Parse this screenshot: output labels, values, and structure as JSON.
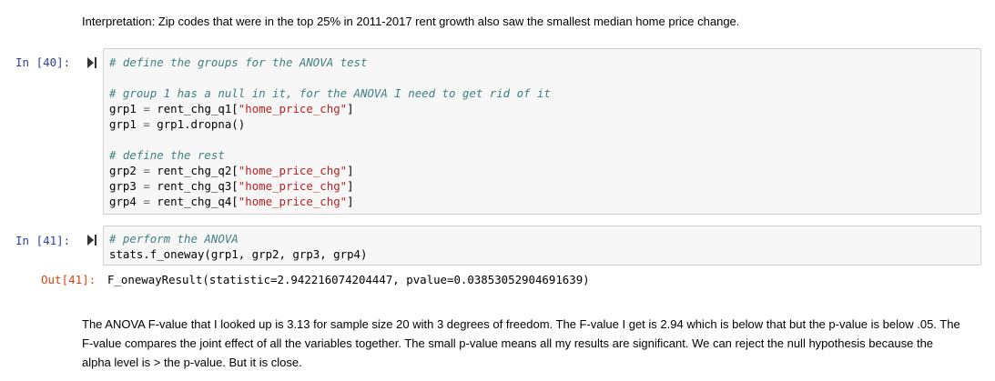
{
  "markdown_top": "Interpretation: Zip codes that were in the top 25% in 2011-2017 rent growth also saw the smallest median home price change.",
  "cell40": {
    "prompt": "In [40]:",
    "comment1": "# define the groups for the ANOVA test",
    "comment2": "# group 1 has a null in it, for the ANOVA I need to get rid of it",
    "line_grp1a": {
      "lhs": "grp1",
      "eq": "=",
      "rhs": "rent_chg_q1[",
      "str": "\"home_price_chg\"",
      "end": "]"
    },
    "line_grp1b": {
      "lhs": "grp1",
      "eq": "=",
      "rhs": "grp1.dropna()"
    },
    "comment3": "# define the rest",
    "line_grp2": {
      "lhs": "grp2",
      "eq": "=",
      "rhs": "rent_chg_q2[",
      "str": "\"home_price_chg\"",
      "end": "]"
    },
    "line_grp3": {
      "lhs": "grp3",
      "eq": "=",
      "rhs": "rent_chg_q3[",
      "str": "\"home_price_chg\"",
      "end": "]"
    },
    "line_grp4": {
      "lhs": "grp4",
      "eq": "=",
      "rhs": "rent_chg_q4[",
      "str": "\"home_price_chg\"",
      "end": "]"
    }
  },
  "cell41": {
    "prompt": "In [41]:",
    "comment": "# perform the ANOVA",
    "code": "stats.f_oneway(grp1, grp2, grp3, grp4)",
    "out_prompt": "Out[41]:",
    "output": "F_onewayResult(statistic=2.942216074204447, pvalue=0.03853052904691639)"
  },
  "markdown_bottom": "The ANOVA F-value that I looked up is 3.13 for sample size 20 with 3 degrees of freedom. The F-value I get is 2.94 which is below that but the p-value is below .05. The F-value compares the joint effect of all the variables together. The small p-value means all my results are significant. We can reject the null hypothesis because the alpha level is > the p-value. But it is close."
}
